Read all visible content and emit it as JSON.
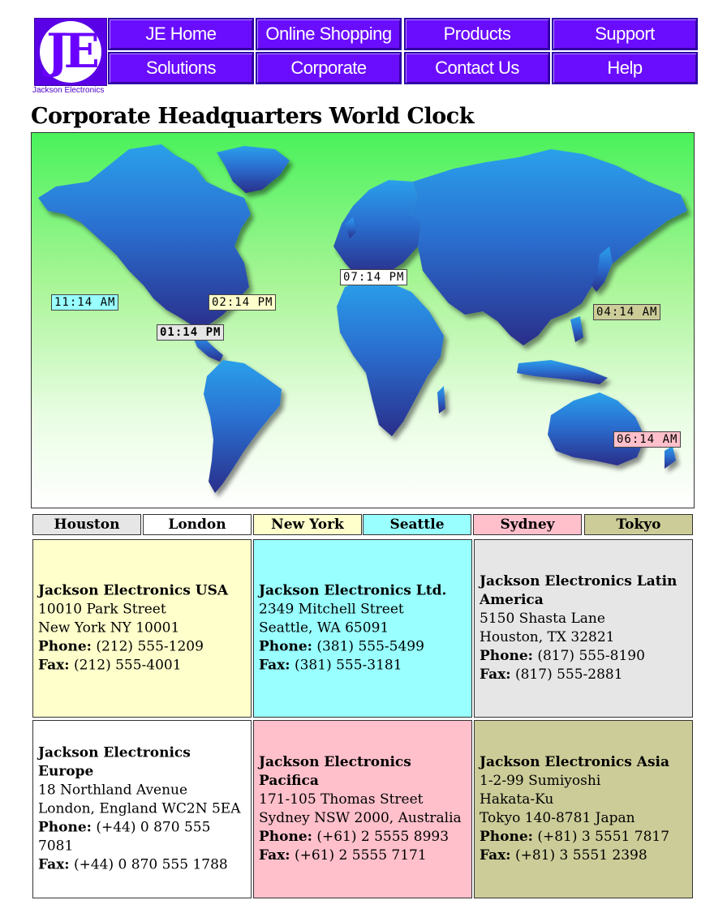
{
  "logo": {
    "letters": "JE",
    "brand": "Jackson Electronics"
  },
  "nav": {
    "items": [
      "JE Home",
      "Online Shopping",
      "Products",
      "Support",
      "Solutions",
      "Corporate",
      "Contact Us",
      "Help"
    ]
  },
  "page_title": "Corporate Headquarters World Clock",
  "colors": {
    "nav_purple": "#6a0dff",
    "map_green": "#49f25b",
    "continent_blue": "#2a7bd9",
    "houston": "#e6e6e6",
    "london": "#ffffff",
    "new_york": "#ffffcc",
    "seattle": "#99ffff",
    "sydney": "#ffc0cb",
    "tokyo": "#cccc99"
  },
  "clocks": {
    "seattle": "11:14 AM",
    "new_york": "02:14 PM",
    "houston": "01:14 PM",
    "london": "07:14 PM",
    "tokyo": "04:14 AM",
    "sydney": "06:14 AM"
  },
  "tabs": [
    "Houston",
    "London",
    "New York",
    "Seattle",
    "Sydney",
    "Tokyo"
  ],
  "offices": [
    {
      "name": "Jackson Electronics USA",
      "lines": [
        "10010 Park Street",
        "New York NY 10001"
      ],
      "phone_label": "Phone:",
      "phone": "(212) 555-1209",
      "fax_label": "Fax:",
      "fax": "(212) 555-4001"
    },
    {
      "name": "Jackson Electronics Ltd.",
      "lines": [
        "2349 Mitchell Street",
        "Seattle, WA 65091"
      ],
      "phone_label": "Phone:",
      "phone": "(381) 555-5499",
      "fax_label": "Fax:",
      "fax": "(381) 555-3181"
    },
    {
      "name": "Jackson Electronics Latin America",
      "lines": [
        "5150 Shasta Lane",
        "Houston, TX 32821"
      ],
      "phone_label": "Phone:",
      "phone": "(817) 555-8190",
      "fax_label": "Fax:",
      "fax": "(817) 555-2881"
    },
    {
      "name": "Jackson Electronics Europe",
      "lines": [
        "18 Northland Avenue",
        "London, England WC2N 5EA"
      ],
      "phone_label": "Phone:",
      "phone": "(+44) 0 870 555 7081",
      "fax_label": "Fax:",
      "fax": "(+44) 0 870 555 1788"
    },
    {
      "name": "Jackson Electronics Pacifica",
      "lines": [
        "171-105 Thomas Street",
        "Sydney NSW 2000, Australia"
      ],
      "phone_label": "Phone:",
      "phone": "(+61) 2 5555 8993",
      "fax_label": "Fax:",
      "fax": "(+61) 2 5555 7171"
    },
    {
      "name": "Jackson Electronics Asia",
      "lines": [
        "1-2-99 Sumiyoshi",
        "Hakata-Ku",
        "Tokyo 140-8781 Japan"
      ],
      "phone_label": "Phone:",
      "phone": "(+81) 3 5551 7817",
      "fax_label": "Fax:",
      "fax": "(+81) 3 5551 2398"
    }
  ]
}
